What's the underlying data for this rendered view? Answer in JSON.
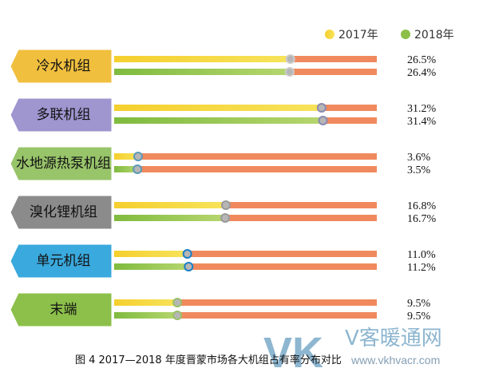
{
  "chart_data": {
    "type": "bar",
    "title": "",
    "caption": "图 4   2017—2018 年度晋蒙市场各大机组占有率分布对比",
    "categories": [
      "冷水机组",
      "多联机组",
      "水地源热泵机组",
      "溴化锂机组",
      "单元机组",
      "末端"
    ],
    "series": [
      {
        "name": "2017年",
        "values": [
          26.5,
          31.2,
          3.6,
          16.8,
          11.0,
          9.5
        ],
        "labels": [
          "26.5%",
          "31.2%",
          "3.6%",
          "16.8%",
          "11.0%",
          "9.5%"
        ]
      },
      {
        "name": "2018年",
        "values": [
          26.4,
          31.4,
          3.5,
          16.7,
          11.2,
          9.5
        ],
        "labels": [
          "26.4%",
          "31.4%",
          "3.5%",
          "16.7%",
          "11.2%",
          "9.5%"
        ]
      }
    ],
    "xlim": [
      0,
      39.5
    ],
    "legend_position": "top-right",
    "grid": false
  },
  "colors": {
    "track": "#f08a5e",
    "series_2017": "#f2c52a",
    "series_2018": "#8cc04a",
    "marker": "#b6b6b6",
    "category_badges": [
      "#f0bf3e",
      "#9f95cf",
      "#98c46a",
      "#8b8b8b",
      "#3aa9dd",
      "#8cc04a"
    ],
    "marker_rings": [
      "#cccccc",
      "#8a8ab0",
      "#5b9ab8",
      "#9a9a9a",
      "#1a7fc8",
      "#9bbf6a"
    ]
  },
  "watermark": {
    "logo": "VK",
    "brand": "V客暖通网",
    "url": "www.vkhvacr.com"
  }
}
